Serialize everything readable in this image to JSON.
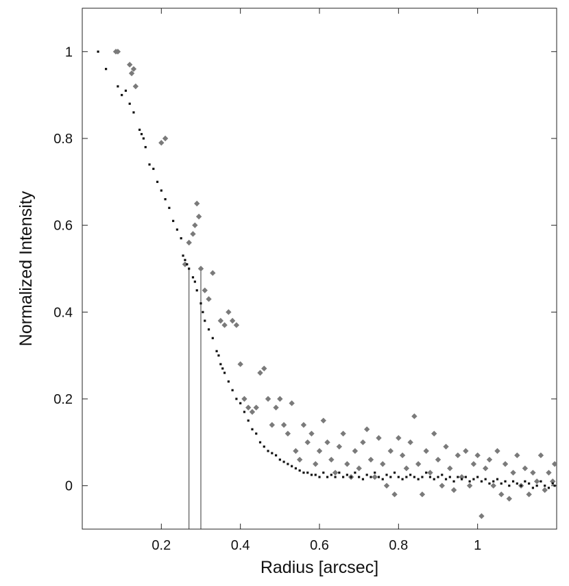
{
  "chart_data": {
    "type": "scatter",
    "title": "",
    "xlabel": "Radius   [arcsec]",
    "ylabel": "Normalized Intensity",
    "xlim": [
      0.0,
      1.2
    ],
    "ylim": [
      -0.1,
      1.1
    ],
    "xticks": [
      {
        "value": 0.2,
        "label": "0.2"
      },
      {
        "value": 0.4,
        "label": "0.4"
      },
      {
        "value": 0.6,
        "label": "0.6"
      },
      {
        "value": 0.8,
        "label": "0.8"
      },
      {
        "value": 1.0,
        "label": "1"
      }
    ],
    "yticks": [
      {
        "value": 0.0,
        "label": "0"
      },
      {
        "value": 0.2,
        "label": "0.2"
      },
      {
        "value": 0.4,
        "label": "0.4"
      },
      {
        "value": 0.6,
        "label": "0.6"
      },
      {
        "value": 0.8,
        "label": "0.8"
      },
      {
        "value": 1.0,
        "label": "1"
      }
    ],
    "grid": false,
    "colors": {
      "series_black": "#111111",
      "series_gray": "#7a7a7a",
      "axes": "#222222"
    },
    "series": [
      {
        "marker": "small-square",
        "color": "#111111",
        "points": [
          [
            0.04,
            1.0
          ],
          [
            0.06,
            0.96
          ],
          [
            0.09,
            0.92
          ],
          [
            0.1,
            0.9
          ],
          [
            0.11,
            0.91
          ],
          [
            0.12,
            0.88
          ],
          [
            0.13,
            0.86
          ],
          [
            0.145,
            0.82
          ],
          [
            0.15,
            0.81
          ],
          [
            0.155,
            0.8
          ],
          [
            0.16,
            0.78
          ],
          [
            0.17,
            0.74
          ],
          [
            0.18,
            0.73
          ],
          [
            0.19,
            0.7
          ],
          [
            0.2,
            0.68
          ],
          [
            0.21,
            0.66
          ],
          [
            0.22,
            0.64
          ],
          [
            0.23,
            0.61
          ],
          [
            0.24,
            0.59
          ],
          [
            0.25,
            0.57
          ],
          [
            0.255,
            0.53
          ],
          [
            0.26,
            0.52
          ],
          [
            0.265,
            0.51
          ],
          [
            0.27,
            0.5
          ],
          [
            0.28,
            0.48
          ],
          [
            0.285,
            0.47
          ],
          [
            0.29,
            0.45
          ],
          [
            0.3,
            0.42
          ],
          [
            0.305,
            0.4
          ],
          [
            0.31,
            0.38
          ],
          [
            0.32,
            0.36
          ],
          [
            0.33,
            0.34
          ],
          [
            0.34,
            0.31
          ],
          [
            0.345,
            0.3
          ],
          [
            0.35,
            0.28
          ],
          [
            0.355,
            0.27
          ],
          [
            0.36,
            0.26
          ],
          [
            0.37,
            0.24
          ],
          [
            0.38,
            0.22
          ],
          [
            0.39,
            0.2
          ],
          [
            0.4,
            0.19
          ],
          [
            0.41,
            0.17
          ],
          [
            0.42,
            0.15
          ],
          [
            0.43,
            0.13
          ],
          [
            0.44,
            0.12
          ],
          [
            0.45,
            0.1
          ],
          [
            0.46,
            0.09
          ],
          [
            0.47,
            0.08
          ],
          [
            0.48,
            0.075
          ],
          [
            0.49,
            0.07
          ],
          [
            0.5,
            0.06
          ],
          [
            0.51,
            0.055
          ],
          [
            0.52,
            0.05
          ],
          [
            0.53,
            0.045
          ],
          [
            0.54,
            0.04
          ],
          [
            0.55,
            0.035
          ],
          [
            0.56,
            0.03
          ],
          [
            0.57,
            0.03
          ],
          [
            0.58,
            0.025
          ],
          [
            0.59,
            0.025
          ],
          [
            0.6,
            0.02
          ],
          [
            0.61,
            0.03
          ],
          [
            0.62,
            0.02
          ],
          [
            0.63,
            0.025
          ],
          [
            0.64,
            0.02
          ],
          [
            0.65,
            0.03
          ],
          [
            0.66,
            0.02
          ],
          [
            0.67,
            0.025
          ],
          [
            0.68,
            0.02
          ],
          [
            0.69,
            0.03
          ],
          [
            0.7,
            0.02
          ],
          [
            0.71,
            0.015
          ],
          [
            0.72,
            0.025
          ],
          [
            0.73,
            0.02
          ],
          [
            0.74,
            0.03
          ],
          [
            0.75,
            0.02
          ],
          [
            0.76,
            0.015
          ],
          [
            0.77,
            0.025
          ],
          [
            0.78,
            0.02
          ],
          [
            0.79,
            0.03
          ],
          [
            0.8,
            0.02
          ],
          [
            0.81,
            0.015
          ],
          [
            0.82,
            0.02
          ],
          [
            0.83,
            0.025
          ],
          [
            0.84,
            0.02
          ],
          [
            0.85,
            0.015
          ],
          [
            0.86,
            0.02
          ],
          [
            0.87,
            0.03
          ],
          [
            0.88,
            0.02
          ],
          [
            0.89,
            0.015
          ],
          [
            0.9,
            0.02
          ],
          [
            0.91,
            0.025
          ],
          [
            0.92,
            0.015
          ],
          [
            0.93,
            0.02
          ],
          [
            0.94,
            0.01
          ],
          [
            0.95,
            0.02
          ],
          [
            0.96,
            0.015
          ],
          [
            0.97,
            0.02
          ],
          [
            0.98,
            0.01
          ],
          [
            0.99,
            0.015
          ],
          [
            1.0,
            0.02
          ],
          [
            1.01,
            0.01
          ],
          [
            1.02,
            0.015
          ],
          [
            1.03,
            0.005
          ],
          [
            1.04,
            0.01
          ],
          [
            1.05,
            0.015
          ],
          [
            1.06,
            0.005
          ],
          [
            1.07,
            0.01
          ],
          [
            1.08,
            0.0
          ],
          [
            1.09,
            0.01
          ],
          [
            1.1,
            0.005
          ],
          [
            1.11,
            0.0
          ],
          [
            1.12,
            0.01
          ],
          [
            1.13,
            0.005
          ],
          [
            1.14,
            -0.005
          ],
          [
            1.15,
            0.0
          ],
          [
            1.16,
            0.01
          ],
          [
            1.17,
            0.0
          ],
          [
            1.18,
            -0.005
          ],
          [
            1.19,
            0.005
          ],
          [
            1.195,
            0.0
          ]
        ]
      },
      {
        "marker": "diamond",
        "color": "#7a7a7a",
        "points": [
          [
            0.085,
            1.0
          ],
          [
            0.09,
            1.0
          ],
          [
            0.12,
            0.97
          ],
          [
            0.125,
            0.95
          ],
          [
            0.13,
            0.96
          ],
          [
            0.135,
            0.92
          ],
          [
            0.2,
            0.79
          ],
          [
            0.21,
            0.8
          ],
          [
            0.26,
            0.51
          ],
          [
            0.27,
            0.56
          ],
          [
            0.28,
            0.58
          ],
          [
            0.285,
            0.6
          ],
          [
            0.29,
            0.65
          ],
          [
            0.295,
            0.62
          ],
          [
            0.3,
            0.5
          ],
          [
            0.31,
            0.45
          ],
          [
            0.32,
            0.43
          ],
          [
            0.33,
            0.49
          ],
          [
            0.35,
            0.38
          ],
          [
            0.36,
            0.37
          ],
          [
            0.37,
            0.4
          ],
          [
            0.38,
            0.38
          ],
          [
            0.39,
            0.37
          ],
          [
            0.4,
            0.28
          ],
          [
            0.41,
            0.2
          ],
          [
            0.42,
            0.18
          ],
          [
            0.43,
            0.17
          ],
          [
            0.44,
            0.18
          ],
          [
            0.45,
            0.26
          ],
          [
            0.46,
            0.27
          ],
          [
            0.47,
            0.2
          ],
          [
            0.48,
            0.14
          ],
          [
            0.49,
            0.18
          ],
          [
            0.5,
            0.2
          ],
          [
            0.51,
            0.14
          ],
          [
            0.52,
            0.12
          ],
          [
            0.53,
            0.19
          ],
          [
            0.54,
            0.08
          ],
          [
            0.55,
            0.06
          ],
          [
            0.56,
            0.14
          ],
          [
            0.57,
            0.1
          ],
          [
            0.58,
            0.12
          ],
          [
            0.59,
            0.05
          ],
          [
            0.6,
            0.08
          ],
          [
            0.61,
            0.15
          ],
          [
            0.62,
            0.1
          ],
          [
            0.63,
            0.06
          ],
          [
            0.64,
            0.03
          ],
          [
            0.65,
            0.09
          ],
          [
            0.66,
            0.12
          ],
          [
            0.67,
            0.05
          ],
          [
            0.68,
            0.02
          ],
          [
            0.69,
            0.08
          ],
          [
            0.7,
            0.04
          ],
          [
            0.71,
            0.1
          ],
          [
            0.72,
            0.13
          ],
          [
            0.73,
            0.06
          ],
          [
            0.74,
            0.02
          ],
          [
            0.75,
            0.11
          ],
          [
            0.76,
            0.05
          ],
          [
            0.77,
            0.0
          ],
          [
            0.78,
            0.08
          ],
          [
            0.79,
            -0.02
          ],
          [
            0.8,
            0.11
          ],
          [
            0.81,
            0.07
          ],
          [
            0.82,
            0.04
          ],
          [
            0.83,
            0.1
          ],
          [
            0.84,
            0.16
          ],
          [
            0.85,
            0.05
          ],
          [
            0.86,
            -0.02
          ],
          [
            0.87,
            0.08
          ],
          [
            0.88,
            0.03
          ],
          [
            0.89,
            0.12
          ],
          [
            0.9,
            0.06
          ],
          [
            0.91,
            0.0
          ],
          [
            0.92,
            0.09
          ],
          [
            0.93,
            0.04
          ],
          [
            0.94,
            -0.01
          ],
          [
            0.95,
            0.07
          ],
          [
            0.96,
            0.02
          ],
          [
            0.97,
            0.08
          ],
          [
            0.98,
            0.0
          ],
          [
            0.99,
            0.05
          ],
          [
            1.0,
            0.07
          ],
          [
            1.01,
            -0.07
          ],
          [
            1.02,
            0.04
          ],
          [
            1.03,
            0.06
          ],
          [
            1.04,
            0.0
          ],
          [
            1.05,
            0.08
          ],
          [
            1.06,
            -0.02
          ],
          [
            1.07,
            0.05
          ],
          [
            1.08,
            -0.03
          ],
          [
            1.09,
            0.03
          ],
          [
            1.1,
            0.07
          ],
          [
            1.11,
            0.0
          ],
          [
            1.12,
            0.04
          ],
          [
            1.13,
            -0.02
          ],
          [
            1.14,
            0.03
          ],
          [
            1.15,
            0.01
          ],
          [
            1.16,
            0.07
          ],
          [
            1.17,
            -0.01
          ],
          [
            1.18,
            0.03
          ],
          [
            1.19,
            0.01
          ],
          [
            1.195,
            0.05
          ]
        ]
      }
    ],
    "reference_lines": [
      {
        "x": 0.27,
        "y_top": 0.5
      },
      {
        "x": 0.3,
        "y_top": 0.5
      }
    ]
  }
}
